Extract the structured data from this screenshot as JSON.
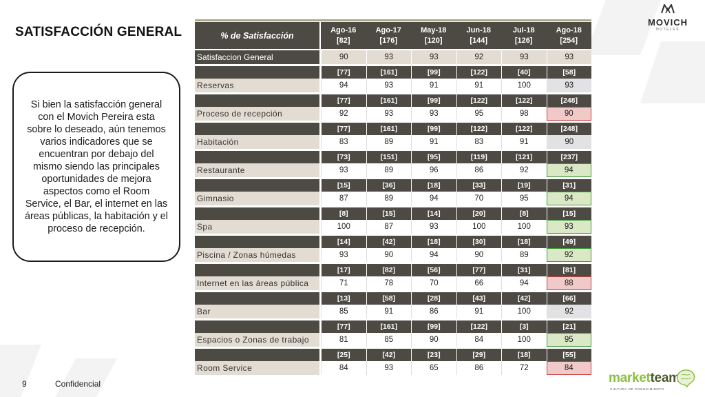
{
  "title": "SATISFACCIÓN GENERAL",
  "callout_text": "Si bien la satisfacción general con el Movich Pereira esta sobre lo deseado, aún tenemos varios indicadores que se encuentran por debajo del mismo siendo las principales oportunidades de mejora aspectos como el Room Service, el Bar, el internet en las áreas públicas, la habitación y el proceso de recepción.",
  "logo": {
    "name": "MOVICH",
    "sub": "HOTELES"
  },
  "footer": {
    "page_number": "9",
    "label": "Confidencial"
  },
  "brand": {
    "part1": "market",
    "part2": "team",
    "tagline": "CULTURA DE CONOCIMIENTO"
  },
  "table": {
    "header_label": "% de Satisfacción",
    "columns": [
      {
        "period": "Ago-16",
        "n": "[82]"
      },
      {
        "period": "Ago-17",
        "n": "[176]"
      },
      {
        "period": "May-18",
        "n": "[120]"
      },
      {
        "period": "Jun-18",
        "n": "[144]"
      },
      {
        "period": "Jul-18",
        "n": "[126]"
      },
      {
        "period": "Ago-18",
        "n": "[254]"
      }
    ],
    "overall": {
      "label": "Satisfaccion General",
      "values": [
        "90",
        "93",
        "93",
        "92",
        "93",
        "93"
      ]
    },
    "rows": [
      {
        "label": "Reservas",
        "counts": [
          "[77]",
          "[161]",
          "[99]",
          "[122]",
          "[40]",
          "[58]"
        ],
        "values": [
          "94",
          "93",
          "91",
          "91",
          "100",
          "93"
        ],
        "highlight": "gray"
      },
      {
        "label": "Proceso de recepción",
        "counts": [
          "[77]",
          "[161]",
          "[99]",
          "[122]",
          "[122]",
          "[248]"
        ],
        "values": [
          "92",
          "93",
          "93",
          "95",
          "98",
          "90"
        ],
        "highlight": "red"
      },
      {
        "label": "Habitación",
        "counts": [
          "[77]",
          "[161]",
          "[99]",
          "[122]",
          "[122]",
          "[248]"
        ],
        "values": [
          "83",
          "89",
          "91",
          "83",
          "91",
          "90"
        ],
        "highlight": "gray"
      },
      {
        "label": "Restaurante",
        "counts": [
          "[73]",
          "[151]",
          "[95]",
          "[119]",
          "[121]",
          "[237]"
        ],
        "values": [
          "93",
          "89",
          "96",
          "86",
          "92",
          "94"
        ],
        "highlight": "green"
      },
      {
        "label": "Gimnasio",
        "counts": [
          "[15]",
          "[36]",
          "[18]",
          "[33]",
          "[19]",
          "[31]"
        ],
        "values": [
          "87",
          "89",
          "94",
          "70",
          "95",
          "94"
        ],
        "highlight": "green"
      },
      {
        "label": "Spa",
        "counts": [
          "[8]",
          "[15]",
          "[14]",
          "[20]",
          "[8]",
          "[15]"
        ],
        "values": [
          "100",
          "87",
          "93",
          "100",
          "100",
          "93"
        ],
        "highlight": "green"
      },
      {
        "label": "Piscina / Zonas húmedas",
        "counts": [
          "[14]",
          "[42]",
          "[18]",
          "[30]",
          "[18]",
          "[49]"
        ],
        "values": [
          "93",
          "90",
          "94",
          "90",
          "89",
          "92"
        ],
        "highlight": "green"
      },
      {
        "label": "Internet en las áreas pública",
        "counts": [
          "[17]",
          "[82]",
          "[56]",
          "[77]",
          "[31]",
          "[81]"
        ],
        "values": [
          "71",
          "78",
          "70",
          "66",
          "94",
          "88"
        ],
        "highlight": "red"
      },
      {
        "label": "Bar",
        "counts": [
          "[13]",
          "[58]",
          "[28]",
          "[43]",
          "[42]",
          "[66]"
        ],
        "values": [
          "85",
          "91",
          "86",
          "91",
          "100",
          "92"
        ],
        "highlight": "gray"
      },
      {
        "label": "Espacios o Zonas de trabajo",
        "counts": [
          "[77]",
          "[161]",
          "[99]",
          "[122]",
          "[3]",
          "[21]"
        ],
        "values": [
          "81",
          "85",
          "90",
          "84",
          "100",
          "95"
        ],
        "highlight": "green"
      },
      {
        "label": "Room Service",
        "counts": [
          "[25]",
          "[42]",
          "[23]",
          "[29]",
          "[18]",
          "[55]"
        ],
        "values": [
          "84",
          "93",
          "65",
          "86",
          "72",
          "84"
        ],
        "highlight": "red"
      }
    ]
  }
}
